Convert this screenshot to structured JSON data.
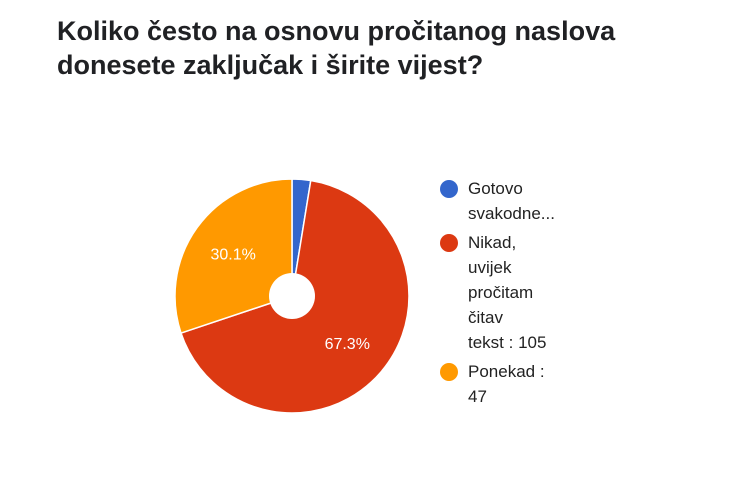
{
  "chart_data": {
    "type": "pie",
    "title": "Koliko često na osnovu pročitanog naslova donesete zaključak i širite vijest?",
    "donut": true,
    "series": [
      {
        "name": "Gotovo svakodne...",
        "value": 4,
        "percent_label": "",
        "color": "#3366cc"
      },
      {
        "name": "Nikad, uvijek pročitam čitav tekst : 105",
        "value": 105,
        "percent_label": "67.3%",
        "color": "#dc3912"
      },
      {
        "name": "Ponekad : 47",
        "value": 47,
        "percent_label": "30.1%",
        "color": "#ff9900"
      }
    ],
    "legend": {
      "position": "right",
      "lines": [
        [
          "Gotovo",
          "svakodne..."
        ],
        [
          "Nikad,",
          "uvijek",
          "pročitam",
          "čitav",
          "tekst : 105"
        ],
        [
          "Ponekad :",
          "47"
        ]
      ]
    }
  }
}
